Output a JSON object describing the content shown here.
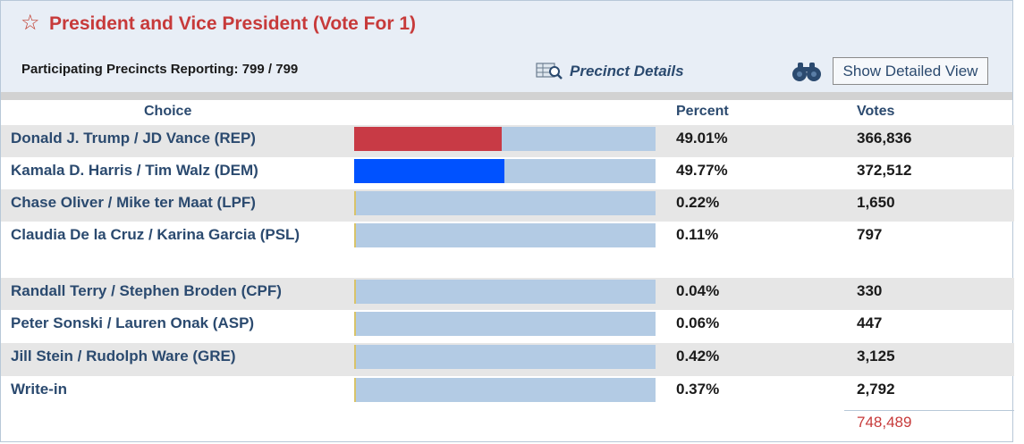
{
  "contest": {
    "star": "☆",
    "title": "President and Vice President (Vote For 1)",
    "reporting": "Participating Precincts Reporting: 799 / 799",
    "precinct_details": "Precinct Details",
    "show_detailed_view": "Show Detailed View"
  },
  "columns": {
    "choice": "Choice",
    "percent": "Percent",
    "votes": "Votes"
  },
  "colors": {
    "rep": "#c83a45",
    "dem": "#0052ff",
    "bar_bg": "#b3cbe4",
    "title": "#c73a3a"
  },
  "rows": [
    {
      "choice": "Donald J. Trump / JD Vance (REP)",
      "percent": "49.01%",
      "votes": "366,836",
      "share": 0.4901
    },
    {
      "choice": "Kamala D. Harris / Tim Walz (DEM)",
      "percent": "49.77%",
      "votes": "372,512",
      "share": 0.4977
    },
    {
      "choice": "Chase Oliver / Mike ter Maat (LPF)",
      "percent": "0.22%",
      "votes": "1,650",
      "share": 0.0022
    },
    {
      "choice": "Claudia De la Cruz / Karina Garcia (PSL)",
      "percent": "0.11%",
      "votes": "797",
      "share": 0.0011
    },
    {
      "choice": "Randall Terry / Stephen Broden (CPF)",
      "percent": "0.04%",
      "votes": "330",
      "share": 0.0004
    },
    {
      "choice": "Peter Sonski / Lauren Onak (ASP)",
      "percent": "0.06%",
      "votes": "447",
      "share": 0.0006
    },
    {
      "choice": "Jill Stein / Rudolph Ware (GRE)",
      "percent": "0.42%",
      "votes": "3,125",
      "share": 0.0042
    },
    {
      "choice": "Write-in",
      "percent": "0.37%",
      "votes": "2,792",
      "share": 0.0037
    }
  ],
  "total_votes": "748,489"
}
